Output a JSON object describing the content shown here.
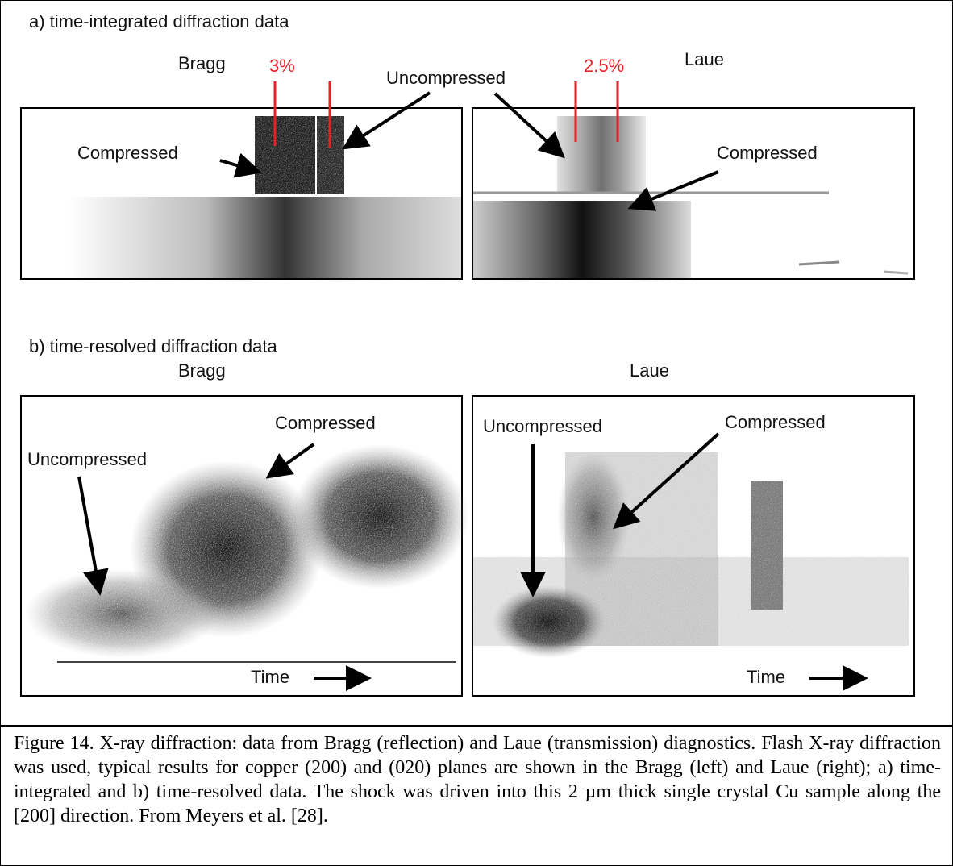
{
  "figure": {
    "a": {
      "label": "a) time-integrated diffraction data",
      "shared": "Uncompressed",
      "bragg": {
        "title": "Bragg",
        "strain": "3%",
        "note": "Compressed"
      },
      "laue": {
        "title": "Laue",
        "strain": "2.5%",
        "note": "Compressed"
      }
    },
    "b": {
      "label": "b) time-resolved diffraction data",
      "bragg": {
        "title": "Bragg",
        "compressed": "Compressed",
        "uncompressed": "Uncompressed",
        "axis": "Time"
      },
      "laue": {
        "title": "Laue",
        "compressed": "Compressed",
        "uncompressed": "Uncompressed",
        "axis": "Time"
      }
    }
  },
  "caption": "Figure 14. X-ray diffraction: data from Bragg (reflection) and Laue (transmission) diagnostics. Flash X-ray diffraction was used, typical results for copper (200) and (020) planes are shown in the Bragg (left) and Laue (right); a) time-integrated and b) time-resolved data. The shock was driven into this 2 µm thick single crystal Cu sample along the [200] direction. From Meyers et al. [28]."
}
